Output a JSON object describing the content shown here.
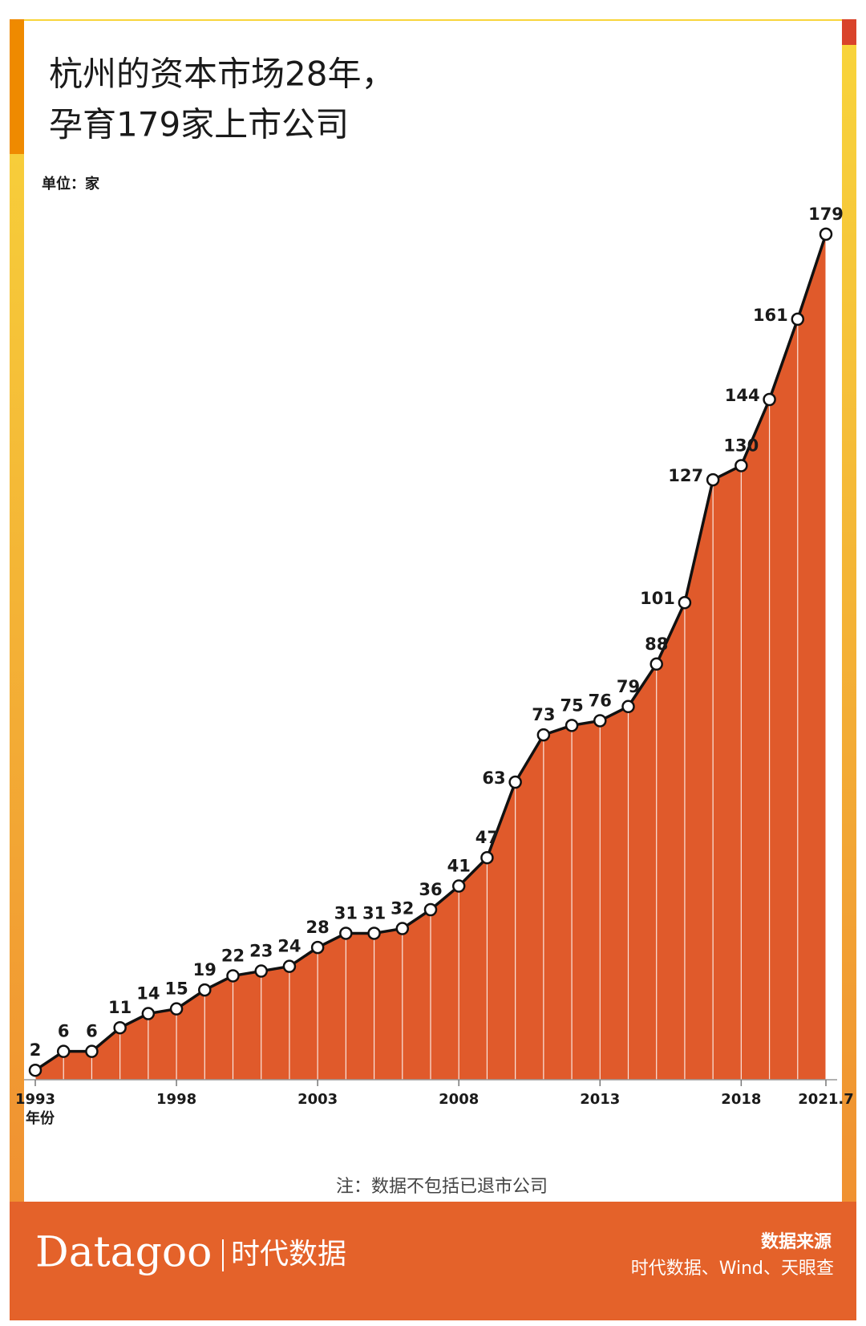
{
  "chart_data": {
    "type": "area",
    "title": [
      "杭州的资本市场28年，",
      "孕育179家上市公司"
    ],
    "unit_label": "单位：家",
    "x_axis_label": "年份",
    "categories": [
      "1993",
      null,
      null,
      null,
      null,
      "1998",
      null,
      null,
      null,
      null,
      "2003",
      null,
      null,
      null,
      null,
      "2008",
      null,
      null,
      null,
      null,
      "2013",
      null,
      null,
      null,
      null,
      "2018",
      null,
      null,
      "2021.7"
    ],
    "values": [
      2,
      6,
      6,
      11,
      14,
      15,
      19,
      22,
      23,
      24,
      28,
      31,
      31,
      32,
      36,
      41,
      47,
      63,
      73,
      75,
      76,
      79,
      88,
      101,
      127,
      130,
      144,
      161,
      179
    ],
    "color": "#e05a2b",
    "line_color": "#111111",
    "ylim": [
      0,
      180
    ],
    "note": "注：数据不包括已退市公司",
    "footer": {
      "logo": "Datagoo",
      "logo_cn": "时代数据",
      "source_title": "数据来源",
      "source": "时代数据、Wind、天眼查"
    }
  }
}
